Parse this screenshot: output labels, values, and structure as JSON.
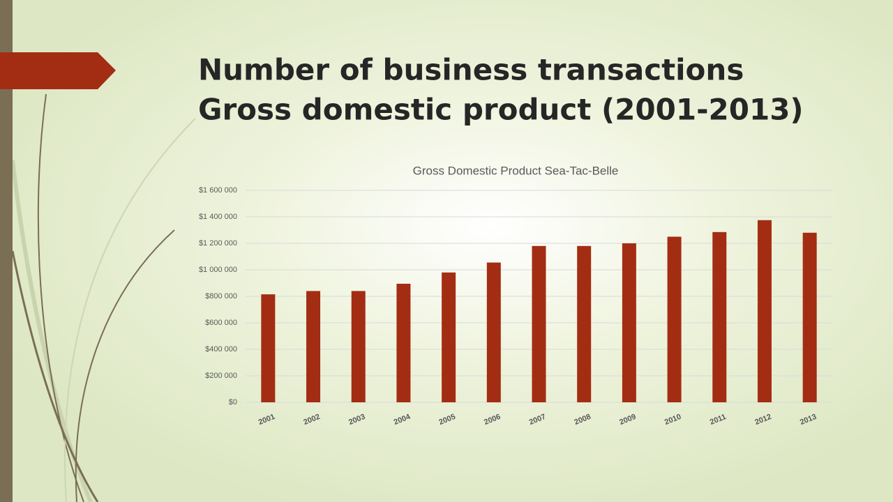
{
  "slide": {
    "title": [
      "Number of business transactions",
      "Gross domestic product (2001-2013)"
    ]
  },
  "chart_data": {
    "type": "bar",
    "title": "Gross Domestic Product Sea-Tac-Belle",
    "categories": [
      "2001",
      "2002",
      "2003",
      "2004",
      "2005",
      "2006",
      "2007",
      "2008",
      "2009",
      "2010",
      "2011",
      "2012",
      "2013"
    ],
    "values": [
      815000,
      840000,
      840000,
      895000,
      980000,
      1055000,
      1180000,
      1180000,
      1200000,
      1250000,
      1285000,
      1375000,
      1280000
    ],
    "color": "#a32d12",
    "ylim": [
      0,
      1600000
    ],
    "yticks": [
      {
        "value": 0,
        "label": "$0"
      },
      {
        "value": 200000,
        "label": "$200 000"
      },
      {
        "value": 400000,
        "label": "$400 000"
      },
      {
        "value": 600000,
        "label": "$600 000"
      },
      {
        "value": 800000,
        "label": "$800 000"
      },
      {
        "value": 1000000,
        "label": "$1 000 000"
      },
      {
        "value": 1200000,
        "label": "$1 200 000"
      },
      {
        "value": 1400000,
        "label": "$1 400 000"
      },
      {
        "value": 1600000,
        "label": "$1 600 000"
      }
    ],
    "grid": true
  }
}
